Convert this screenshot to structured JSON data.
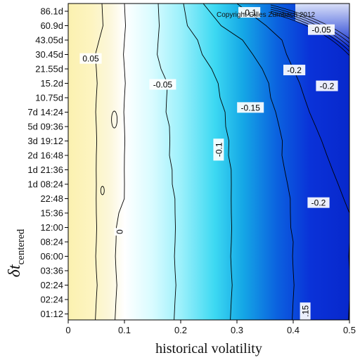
{
  "chart_data": {
    "type": "heatmap",
    "xlabel": "historical volatility",
    "ylabel_main": "δt",
    "ylabel_sub": "centered",
    "xlim": [
      0,
      0.5
    ],
    "x_ticks": [
      "0",
      "0.1",
      "0.2",
      "0.3",
      "0.4",
      "0.5"
    ],
    "y_ticks": [
      "86.1d",
      "60.9d",
      "43.05d",
      "30.45d",
      "21.55d",
      "15.2d",
      "10.75d",
      "7d 14:24",
      "5d 09:36",
      "3d 19:12",
      "2d 16:48",
      "1d 21:36",
      "1d 08:24",
      "22:48",
      "15:36",
      "12:00",
      "08:24",
      "06:00",
      "03:36",
      "02:24",
      "02:24",
      "01:12"
    ],
    "copyright": "Copyright Gilles Zumbach 2012",
    "contour_levels": [
      0.05,
      0,
      -0.05,
      -0.1,
      -0.15,
      -0.2
    ],
    "contours": [
      {
        "level": 0.05,
        "x_by_row": [
          0.06,
          0.06,
          0.055,
          0.05,
          0.05,
          0.05,
          0.05,
          0.05,
          0.05,
          0.05,
          0.05,
          0.05,
          0.05,
          0.05,
          0.05,
          0.05,
          0.05,
          0.05,
          0.05,
          0.05,
          0.05,
          0.05
        ]
      },
      {
        "level": 0,
        "x_by_row": [
          0.1,
          0.1,
          0.1,
          0.1,
          0.1,
          0.1,
          0.1,
          0.1,
          0.1,
          0.1,
          0.1,
          0.1,
          0.1,
          0.1,
          0.09,
          0.085,
          0.085,
          0.085,
          0.085,
          0.085,
          0.085,
          0.085
        ]
      },
      {
        "level": -0.05,
        "x_by_row": [
          0.16,
          0.16,
          0.16,
          0.16,
          0.165,
          0.175,
          0.175,
          0.175,
          0.18,
          0.18,
          0.18,
          0.185,
          0.185,
          0.19,
          0.19,
          0.19,
          0.19,
          0.19,
          0.19,
          0.19,
          0.19,
          0.19
        ]
      },
      {
        "level": -0.1,
        "x_by_row": [
          0.205,
          0.21,
          0.23,
          0.24,
          0.255,
          0.265,
          0.27,
          0.28,
          0.28,
          0.285,
          0.285,
          0.29,
          0.29,
          0.29,
          0.29,
          0.29,
          0.29,
          0.29,
          0.29,
          0.29,
          0.29,
          0.29
        ]
      },
      {
        "level": -0.15,
        "x_by_row": [
          0.24,
          0.27,
          0.31,
          0.33,
          0.345,
          0.355,
          0.36,
          0.37,
          0.375,
          0.38,
          0.38,
          0.385,
          0.39,
          0.395,
          0.395,
          0.395,
          0.4,
          0.4,
          0.4,
          0.4,
          0.4,
          0.4
        ]
      },
      {
        "level": -0.2,
        "x_by_row": [
          0.3,
          0.35,
          0.38,
          0.39,
          0.4,
          0.41,
          0.42,
          0.43,
          0.44,
          0.45,
          0.46,
          0.47,
          0.48,
          0.49,
          0.5,
          0.5,
          0.5,
          0.5,
          0.5,
          0.5,
          0.5,
          0.5
        ]
      }
    ],
    "contour_labels": [
      {
        "text": "0.05",
        "x": 0.04,
        "row": 3.3
      },
      {
        "text": "-0.05",
        "x": 0.168,
        "row": 5.1
      },
      {
        "text": "0",
        "x": 0.092,
        "row": 15.3
      },
      {
        "text": "-0.1",
        "x": 0.268,
        "row": 9.6
      },
      {
        "text": "-0.15",
        "x": 0.324,
        "row": 6.7
      },
      {
        "text": "-0.2",
        "x": 0.402,
        "row": 4.1
      },
      {
        "text": "-0.2",
        "x": 0.46,
        "row": 5.2
      },
      {
        "text": "-0.2",
        "x": 0.445,
        "row": 13.3
      },
      {
        "text": "-0.05",
        "x": 0.45,
        "row": 1.3
      },
      {
        "text": "-0.1",
        "x": 0.322,
        "row": 0.1
      },
      {
        "text": ".15",
        "x": 0.422,
        "row": 20.8
      }
    ]
  }
}
